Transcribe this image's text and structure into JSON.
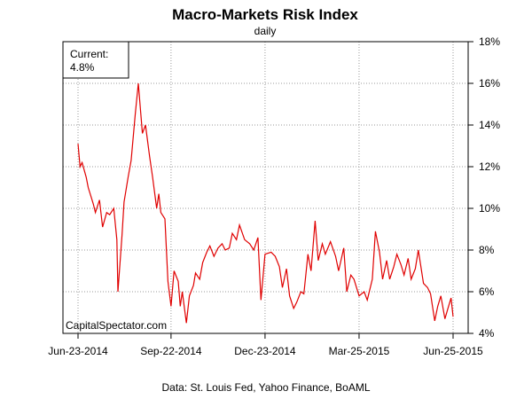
{
  "chart_data": {
    "type": "line",
    "title": "Macro-Markets Risk Index",
    "subtitle": "daily",
    "xlabel": "",
    "ylabel": "",
    "x_ticks": [
      "Jun-23-2014",
      "Sep-22-2014",
      "Dec-23-2014",
      "Mar-25-2015",
      "Jun-25-2015"
    ],
    "y_ticks": [
      "4%",
      "6%",
      "8%",
      "10%",
      "12%",
      "14%",
      "16%",
      "18%"
    ],
    "ylim": [
      4,
      18
    ],
    "xlim": [
      "2014-06-23",
      "2015-06-25"
    ],
    "y_axis_side": "right",
    "grid": true,
    "line_color": "#e00000",
    "current_label": "Current:",
    "current_value": "4.8%",
    "watermark": "CapitalSpectator.com",
    "source_note": "Data: St. Louis Fed, Yahoo Finance, BoAML",
    "series": [
      {
        "x": [
          "2014-06-23",
          "2014-06-25",
          "2014-06-27",
          "2014-07-01",
          "2014-07-03",
          "2014-07-08",
          "2014-07-10",
          "2014-07-14",
          "2014-07-17",
          "2014-07-21",
          "2014-07-24",
          "2014-07-28",
          "2014-07-31",
          "2014-08-01",
          "2014-08-05",
          "2014-08-07",
          "2014-08-11",
          "2014-08-14",
          "2014-08-18",
          "2014-08-21",
          "2014-08-25",
          "2014-08-28",
          "2014-09-01",
          "2014-09-04",
          "2014-09-08",
          "2014-09-10",
          "2014-09-12",
          "2014-09-16",
          "2014-09-19",
          "2014-09-22",
          "2014-09-25",
          "2014-09-29",
          "2014-10-01",
          "2014-10-03",
          "2014-10-07",
          "2014-10-10",
          "2014-10-14",
          "2014-10-16",
          "2014-10-20",
          "2014-10-23",
          "2014-10-27",
          "2014-10-30",
          "2014-11-03",
          "2014-11-07",
          "2014-11-11",
          "2014-11-14",
          "2014-11-18",
          "2014-11-21",
          "2014-11-25",
          "2014-11-28",
          "2014-12-03",
          "2014-12-08",
          "2014-12-12",
          "2014-12-16",
          "2014-12-19",
          "2014-12-23",
          "2014-12-29",
          "2015-01-02",
          "2015-01-06",
          "2015-01-09",
          "2015-01-13",
          "2015-01-16",
          "2015-01-20",
          "2015-01-23",
          "2015-01-27",
          "2015-01-30",
          "2015-02-03",
          "2015-02-06",
          "2015-02-10",
          "2015-02-13",
          "2015-02-17",
          "2015-02-20",
          "2015-02-25",
          "2015-03-02",
          "2015-03-05",
          "2015-03-10",
          "2015-03-13",
          "2015-03-17",
          "2015-03-20",
          "2015-03-25",
          "2015-03-30",
          "2015-04-02",
          "2015-04-07",
          "2015-04-10",
          "2015-04-14",
          "2015-04-17",
          "2015-04-21",
          "2015-04-24",
          "2015-04-28",
          "2015-05-01",
          "2015-05-05",
          "2015-05-08",
          "2015-05-12",
          "2015-05-15",
          "2015-05-19",
          "2015-05-22",
          "2015-05-27",
          "2015-05-31",
          "2015-06-03",
          "2015-06-07",
          "2015-06-10",
          "2015-06-13",
          "2015-06-17",
          "2015-06-20",
          "2015-06-23",
          "2015-06-25"
        ],
        "values": [
          13.1,
          12.0,
          12.2,
          11.5,
          11.0,
          10.2,
          9.8,
          10.4,
          9.1,
          9.8,
          9.7,
          10.0,
          8.5,
          6.0,
          8.7,
          10.3,
          11.5,
          12.3,
          14.5,
          16.0,
          13.6,
          14.0,
          12.5,
          11.5,
          10.0,
          10.7,
          9.8,
          9.5,
          6.5,
          5.3,
          7.0,
          6.5,
          5.3,
          6.0,
          4.5,
          5.8,
          6.3,
          6.9,
          6.6,
          7.4,
          7.9,
          8.2,
          7.7,
          8.1,
          8.3,
          8.0,
          8.1,
          8.8,
          8.5,
          9.2,
          8.5,
          8.3,
          8.0,
          8.6,
          5.6,
          7.8,
          7.9,
          7.7,
          7.2,
          6.2,
          7.1,
          5.8,
          5.2,
          5.5,
          6.0,
          5.9,
          7.8,
          7.0,
          9.4,
          7.5,
          8.3,
          7.8,
          8.4,
          7.7,
          7.0,
          8.1,
          6.0,
          6.8,
          6.6,
          5.8,
          6.0,
          5.6,
          6.6,
          8.9,
          7.9,
          6.6,
          7.5,
          6.6,
          7.2,
          7.8,
          7.3,
          6.8,
          7.6,
          6.6,
          7.1,
          8.0,
          6.4,
          6.2,
          5.9,
          4.6,
          5.3,
          5.8,
          4.7,
          5.2,
          5.7,
          4.8
        ]
      }
    ]
  }
}
